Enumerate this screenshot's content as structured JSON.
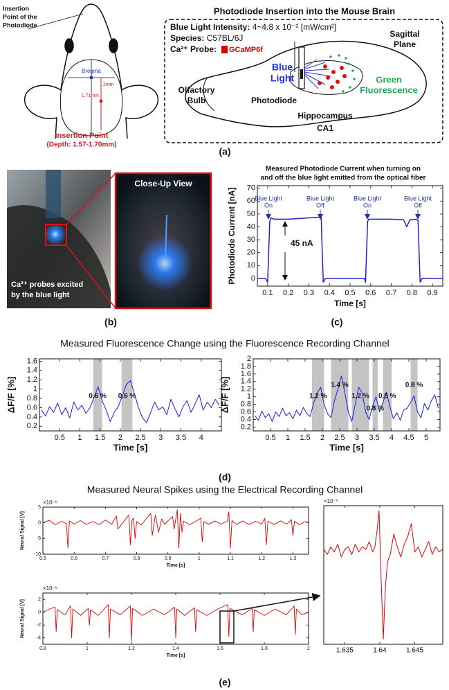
{
  "panel_a": {
    "insertion_label": [
      "Insertion",
      "Point of the",
      "Photodiode"
    ],
    "bregma": "Bregma",
    "dist_2mm": "2mm",
    "dist_171": "1.71mm",
    "insertion_point": "Insertion Point",
    "depth": "(Depth: 1.57-1.70mm)",
    "title": "Photodiode Insertion into the Mouse Brain",
    "intensity_key": "Blue Light Intensity:",
    "intensity_value": "4~4.8 x 10⁻² [mW/cm²]",
    "species_key": "Species:",
    "species_value": "C57BL/6J",
    "probe_key": "Ca²⁺ Probe:",
    "probe_value": "GCaMP6f",
    "sagittal": [
      "Sagittal",
      "Plane"
    ],
    "blue_light": [
      "Blue",
      "Light"
    ],
    "green": [
      "Green",
      "Fluorescence"
    ],
    "olfactory": [
      "Olfactory",
      "Bulb"
    ],
    "photodiode": "Photodiode",
    "hippocampus": "Hippocampus",
    "ca1": "CA1",
    "caption": "(a)"
  },
  "panel_b": {
    "close_up": "Close-Up View",
    "probes": [
      "Ca²⁺ probes excited",
      "by the blue light"
    ],
    "caption": "(b)"
  },
  "panel_c": {
    "caption": "(c)"
  },
  "panel_d": {
    "title": "Measured Fluorescence Change using the Fluorescence Recording Channel",
    "caption": "(d)"
  },
  "panel_e": {
    "title": "Measured Neural Spikes using the Electrical Recording Channel",
    "caption": "(e)"
  },
  "chart_data": [
    {
      "type": "line",
      "title": [
        "Measured Photodiode Current when turning on",
        "and off the blue light emitted from the optical fiber"
      ],
      "xlabel": "Time [s]",
      "ylabel": "Photodiode Current [nA]",
      "color": "#2222cc",
      "x": [
        0.05,
        0.09,
        0.1,
        0.105,
        0.11,
        0.115,
        0.13,
        0.2,
        0.3,
        0.35,
        0.36,
        0.365,
        0.37,
        0.38,
        0.5,
        0.57,
        0.575,
        0.58,
        0.585,
        0.59,
        0.7,
        0.76,
        0.775,
        0.79,
        0.82,
        0.83,
        0.835,
        0.84,
        0.85,
        0.95
      ],
      "values": [
        0,
        0,
        -3,
        20,
        44,
        47,
        46,
        46,
        47,
        47.5,
        47,
        20,
        -3,
        0,
        0,
        0,
        -3,
        20,
        44,
        46,
        46,
        45.5,
        40,
        45.5,
        46,
        45,
        20,
        -3,
        0,
        0
      ],
      "xlim": [
        0.05,
        0.95
      ],
      "xticks": [
        0.1,
        0.2,
        0.3,
        0.4,
        0.5,
        0.6,
        0.7,
        0.8,
        0.9
      ],
      "ylim": [
        -6,
        72
      ],
      "yticks": [
        0,
        10,
        20,
        30,
        40,
        50,
        60,
        70
      ],
      "annotations": [
        [
          "Blue Light",
          "On"
        ],
        [
          "Blue Light",
          "Off"
        ],
        [
          "Blue Light",
          "On"
        ],
        [
          "Blue Light",
          "Off"
        ]
      ],
      "delta_label": "45 nA"
    },
    {
      "type": "line",
      "xlabel": "Time [s]",
      "ylabel": "ΔF/F [%]",
      "color": "#1a1aee",
      "x": [
        0.05,
        0.15,
        0.25,
        0.35,
        0.45,
        0.55,
        0.65,
        0.75,
        0.85,
        0.95,
        1.05,
        1.15,
        1.25,
        1.35,
        1.45,
        1.55,
        1.65,
        1.75,
        1.85,
        1.95,
        2.05,
        2.15,
        2.25,
        2.35,
        2.45,
        2.55,
        2.65,
        2.75,
        2.85,
        2.95,
        3.05,
        3.15,
        3.25,
        3.35,
        3.45,
        3.55,
        3.65,
        3.75,
        3.85,
        3.95,
        4.05,
        4.15,
        4.25,
        4.35,
        4.45
      ],
      "values": [
        0.55,
        0.42,
        0.62,
        0.5,
        0.7,
        0.45,
        0.6,
        0.38,
        0.72,
        0.55,
        0.65,
        0.48,
        0.6,
        0.82,
        1.05,
        0.75,
        0.55,
        0.3,
        0.5,
        0.62,
        0.85,
        1.1,
        1.18,
        0.9,
        0.6,
        0.38,
        0.28,
        0.5,
        0.72,
        0.55,
        0.62,
        0.45,
        0.78,
        0.58,
        0.4,
        0.62,
        0.75,
        0.5,
        0.68,
        0.88,
        0.55,
        0.72,
        0.6,
        0.78,
        0.65
      ],
      "xlim": [
        0,
        4.5
      ],
      "xticks": [
        0.5,
        1,
        1.5,
        2,
        2.5,
        3,
        3.5,
        4
      ],
      "ylim": [
        0.1,
        1.65
      ],
      "yticks": [
        0.2,
        0.4,
        0.6,
        0.8,
        1,
        1.2,
        1.4,
        1.6
      ],
      "shaded": [
        [
          1.33,
          1.55
        ],
        [
          2.03,
          2.3
        ]
      ],
      "shaded_labels": [
        "0.6 %",
        "0.6 %"
      ]
    },
    {
      "type": "line",
      "xlabel": "Time [s]",
      "ylabel": "ΔF/F [%]",
      "color": "#1a1aee",
      "x": [
        0.05,
        0.15,
        0.25,
        0.35,
        0.45,
        0.55,
        0.65,
        0.75,
        0.85,
        0.95,
        1.05,
        1.15,
        1.25,
        1.35,
        1.45,
        1.55,
        1.65,
        1.75,
        1.85,
        1.95,
        2.05,
        2.15,
        2.25,
        2.35,
        2.45,
        2.55,
        2.65,
        2.75,
        2.85,
        2.95,
        3.05,
        3.15,
        3.25,
        3.35,
        3.45,
        3.55,
        3.65,
        3.75,
        3.85,
        3.95,
        4.05,
        4.15,
        4.25,
        4.35,
        4.45,
        4.55,
        4.65,
        4.75,
        4.85,
        4.95,
        5.05,
        5.15,
        5.25,
        5.35
      ],
      "values": [
        0.5,
        0.38,
        0.62,
        0.45,
        0.55,
        0.35,
        0.6,
        0.48,
        0.7,
        0.5,
        0.58,
        0.42,
        0.65,
        0.5,
        0.72,
        0.55,
        0.48,
        0.85,
        1.1,
        1.25,
        0.8,
        0.55,
        0.45,
        0.9,
        1.2,
        1.55,
        1.1,
        0.6,
        0.35,
        0.8,
        1.25,
        1.1,
        0.6,
        0.4,
        0.75,
        1.0,
        0.6,
        0.85,
        1.12,
        0.75,
        0.42,
        0.58,
        0.38,
        0.65,
        0.7,
        0.85,
        1.02,
        0.6,
        0.45,
        0.82,
        0.65,
        0.9,
        1.05,
        0.7
      ],
      "xlim": [
        0,
        5.4
      ],
      "xticks": [
        0.5,
        1,
        1.5,
        2,
        2.5,
        3,
        3.5,
        4,
        4.5,
        5
      ],
      "ylim": [
        0.1,
        2
      ],
      "yticks": [
        0.2,
        0.4,
        0.6,
        0.8,
        1,
        1.2,
        1.4,
        1.6,
        1.8,
        2
      ],
      "shaded": [
        [
          1.7,
          2.05
        ],
        [
          2.25,
          2.75
        ],
        [
          2.85,
          3.35
        ],
        [
          3.45,
          3.6
        ],
        [
          3.75,
          4.0
        ],
        [
          4.55,
          4.75
        ]
      ],
      "shaded_labels": [
        "1.2 %",
        "1.4 %",
        "1.2 %",
        "0.8 %",
        "0.8 %",
        "0.8 %"
      ]
    },
    {
      "type": "line",
      "xlabel": "Time [s]",
      "ylabel": "Neural Signal [V]",
      "ylabel_multiplier": "×10⁻⁵",
      "color": "#e00000",
      "x": [
        0.5,
        0.52,
        0.54,
        0.56,
        0.575,
        0.58,
        0.585,
        0.6,
        0.62,
        0.64,
        0.66,
        0.68,
        0.7,
        0.72,
        0.735,
        0.74,
        0.76,
        0.775,
        0.78,
        0.785,
        0.79,
        0.795,
        0.8,
        0.815,
        0.83,
        0.845,
        0.85,
        0.86,
        0.87,
        0.88,
        0.89,
        0.9,
        0.915,
        0.92,
        0.93,
        0.935,
        0.94,
        0.945,
        0.95,
        0.97,
        0.99,
        1.005,
        1.01,
        1.015,
        1.03,
        1.05,
        1.07,
        1.09,
        1.095,
        1.1,
        1.105,
        1.12,
        1.14,
        1.16,
        1.18,
        1.2,
        1.21,
        1.215,
        1.22,
        1.24,
        1.26,
        1.28,
        1.295,
        1.3,
        1.305,
        1.32,
        1.34,
        1.35
      ],
      "values": [
        0,
        0.8,
        -0.6,
        0.5,
        -0.3,
        -8,
        0.6,
        -0.4,
        0.7,
        -0.5,
        0.4,
        -0.6,
        0.9,
        -0.5,
        2.2,
        -2,
        0.6,
        2.5,
        -7,
        0.8,
        1.5,
        -5,
        0.4,
        -0.7,
        1.2,
        3,
        -4,
        2.5,
        -3,
        1.2,
        -0.5,
        0.6,
        2,
        -2,
        4.2,
        -8,
        3,
        -3,
        0.5,
        -0.6,
        0.5,
        1.5,
        -6,
        0.4,
        -0.5,
        0.6,
        -0.4,
        0.5,
        3.5,
        -8,
        0.7,
        -0.5,
        0.6,
        -0.6,
        0.5,
        -0.4,
        1.5,
        -7,
        0.5,
        -0.5,
        0.6,
        -0.4,
        1,
        -4,
        0.5,
        -0.6,
        0.4,
        0
      ],
      "xlim": [
        0.5,
        1.35
      ],
      "xticks": [
        0.5,
        0.6,
        0.7,
        0.8,
        0.9,
        1,
        1.1,
        1.2,
        1.3
      ],
      "ylim": [
        -10,
        5
      ],
      "yticks": [
        -10,
        -5,
        0,
        5
      ]
    },
    {
      "type": "line",
      "xlabel": "Time [s]",
      "ylabel": "Neural Signal [V]",
      "ylabel_multiplier": "×10⁻⁵",
      "color": "#e00000",
      "x": [
        0.8,
        0.83,
        0.855,
        0.86,
        0.865,
        0.9,
        0.925,
        0.93,
        0.935,
        0.97,
        1.005,
        1.01,
        1.015,
        1.05,
        1.095,
        1.1,
        1.105,
        1.15,
        1.195,
        1.2,
        1.205,
        1.25,
        1.3,
        1.35,
        1.395,
        1.4,
        1.405,
        1.44,
        1.485,
        1.49,
        1.495,
        1.54,
        1.59,
        1.635,
        1.64,
        1.645,
        1.7,
        1.745,
        1.75,
        1.755,
        1.8,
        1.85,
        1.9,
        1.935,
        1.94,
        1.945,
        1.97,
        2
      ],
      "values": [
        0,
        0.5,
        0.8,
        -3,
        0.4,
        -0.4,
        1,
        -4,
        0.5,
        -0.5,
        0.6,
        -2,
        0.4,
        -0.5,
        1.2,
        -4,
        0.5,
        -0.4,
        1,
        -4.5,
        0.6,
        -0.5,
        0.5,
        -0.4,
        0.8,
        -4,
        0.5,
        -0.5,
        0.7,
        -3,
        0.4,
        -0.5,
        0.5,
        1.2,
        -3.8,
        0.6,
        -0.4,
        0.6,
        -3,
        0.4,
        -0.5,
        0.5,
        -0.4,
        1,
        -3.5,
        0.5,
        -0.4,
        0
      ],
      "xlim": [
        0.8,
        2
      ],
      "xticks": [
        0.8,
        1,
        1.2,
        1.4,
        1.6,
        1.8,
        2
      ],
      "ylim": [
        -5,
        3
      ],
      "yticks": [
        -4,
        -2,
        0,
        2
      ]
    },
    {
      "type": "line",
      "ylabel_multiplier": "×10⁻⁵",
      "color": "#e00000",
      "x": [
        1.632,
        1.6325,
        1.633,
        1.6335,
        1.634,
        1.6345,
        1.635,
        1.6355,
        1.636,
        1.6365,
        1.637,
        1.6375,
        1.638,
        1.6385,
        1.639,
        1.6393,
        1.6396,
        1.6399,
        1.6402,
        1.6405,
        1.6408,
        1.6411,
        1.6415,
        1.642,
        1.6425,
        1.643,
        1.6435,
        1.644,
        1.6445,
        1.645,
        1.6455,
        1.646,
        1.6465,
        1.647,
        1.6475,
        1.648,
        1.6485,
        1.649
      ],
      "values": [
        -0.3,
        -0.5,
        -0.2,
        -0.4,
        -0.1,
        -0.6,
        -0.3,
        -0.2,
        -0.5,
        -0.1,
        -0.4,
        -0.2,
        -0.3,
        0,
        -0.4,
        -0.2,
        0.4,
        1.2,
        -1.5,
        -3.8,
        -1.8,
        -0.8,
        -0.5,
        0.3,
        -0.2,
        -0.6,
        -0.1,
        0.2,
        0.7,
        -0.4,
        -0.2,
        -0.6,
        -0.3,
        0,
        -0.5,
        -0.2,
        -0.4,
        -0.3
      ],
      "xlim": [
        1.632,
        1.649
      ],
      "xticks": [
        1.635,
        1.64,
        1.645
      ],
      "ylim": [
        -4,
        1.4
      ]
    }
  ]
}
